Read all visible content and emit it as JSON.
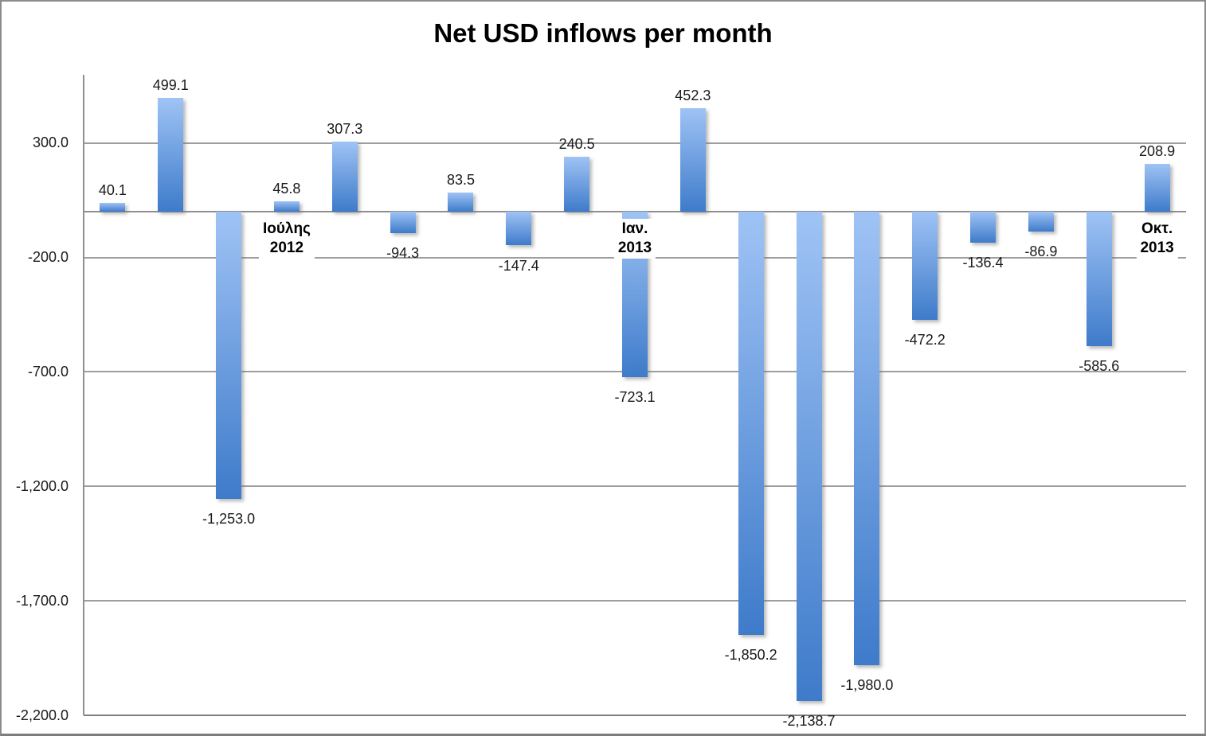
{
  "chart_data": {
    "type": "bar",
    "title": "Net USD inflows per month",
    "xlabel": "",
    "ylabel": "",
    "legend": "none",
    "grid": true,
    "axis": {
      "min": -2200,
      "max": 600,
      "major_unit": 500
    },
    "y_ticks": [
      {
        "value": 300,
        "label": "300.0"
      },
      {
        "value": -200,
        "label": "-200.0"
      },
      {
        "value": -700,
        "label": "-700.0"
      },
      {
        "value": -1200,
        "label": "-1,200.0"
      },
      {
        "value": -1700,
        "label": "-1,700.0"
      },
      {
        "value": -2200,
        "label": "-2,200.0"
      }
    ],
    "categories": [
      "",
      "",
      "",
      "Ιούλης 2012",
      "",
      "",
      "",
      "",
      "",
      "Ιαν. 2013",
      "",
      "",
      "",
      "",
      "",
      "",
      "",
      "",
      "Οκτ. 2013"
    ],
    "values": [
      40.1,
      499.1,
      -1253.0,
      45.8,
      307.3,
      -94.3,
      83.5,
      -147.4,
      240.5,
      -723.1,
      452.3,
      -1850.2,
      -2138.7,
      -1980.0,
      -472.2,
      -136.4,
      -86.9,
      -585.6,
      208.9
    ],
    "data_labels": [
      "40.1",
      "499.1",
      "-1,253.0",
      "45.8",
      "307.3",
      "-94.3",
      "83.5",
      "-147.4",
      "240.5",
      "-723.1",
      "452.3",
      "-1,850.2",
      "-2,138.7",
      "-1,980.0",
      "-472.2",
      "-136.4",
      "-86.9",
      "-585.6",
      "208.9"
    ],
    "category_axis_labels": [
      {
        "index": 3,
        "lines": [
          "Ιούλης",
          "2012"
        ]
      },
      {
        "index": 9,
        "lines": [
          "Ιαν.",
          "2013"
        ]
      },
      {
        "index": 18,
        "lines": [
          "Οκτ.",
          "2013"
        ]
      }
    ],
    "colors": {
      "bar_gradient_top": "#9fc3f5",
      "bar_gradient_bottom": "#3e7bca",
      "gridline": "#9e9e9e",
      "axis_line": "#8f8f8f",
      "plot_bottom_border": "#7f7f7f",
      "label_text": "#1a1a1a",
      "background": "#ffffff",
      "frame_border": "#8c8c8c"
    }
  }
}
